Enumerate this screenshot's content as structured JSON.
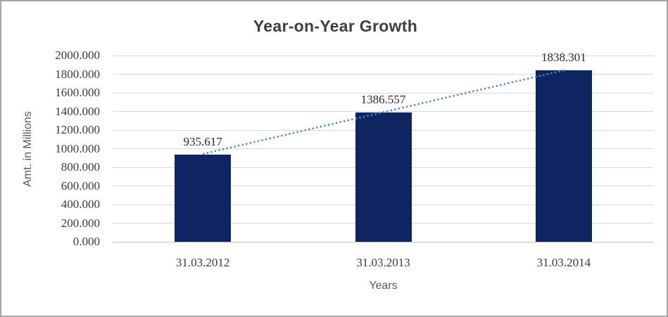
{
  "window": {
    "background": "#ffffff",
    "border_color": "#a6a6a6"
  },
  "chart_data": {
    "type": "bar",
    "title": "Year-on-Year Growth",
    "xlabel": "Years",
    "ylabel": "Amt. in Millions",
    "categories": [
      "31.03.2012",
      "31.03.2013",
      "31.03.2014"
    ],
    "values": [
      935.617,
      1386.557,
      1838.301
    ],
    "data_labels": [
      "935.617",
      "1386.557",
      "1838.301"
    ],
    "ylim": [
      0,
      2000
    ],
    "ytick_step": 200,
    "ytick_labels": [
      "2000.000",
      "1800.000",
      "1600.000",
      "1400.000",
      "1200.000",
      "1000.000",
      "800.000",
      "600.000",
      "400.000",
      "200.000",
      "0.000"
    ],
    "grid": true,
    "legend_position": "none",
    "trendline": {
      "style": "dotted",
      "connects": "first-bar-top-to-last-bar-top"
    },
    "colors": {
      "bar": "#0d2562",
      "trendline": "#4f87c7",
      "gridline": "#d9d9d9",
      "axis_line": "#bfbfbf",
      "title": "#3f3f3f",
      "axis_title": "#595959",
      "tick_label": "#3a3a3a",
      "data_label": "#2b2b2b"
    }
  }
}
